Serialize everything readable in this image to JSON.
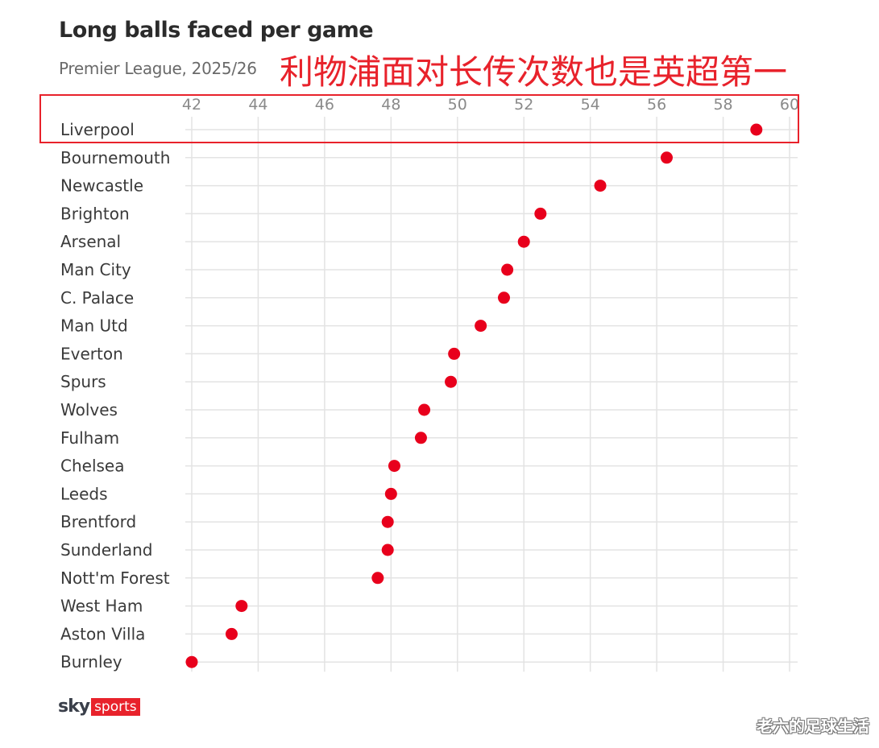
{
  "chart_data": {
    "type": "scatter",
    "title": "Long balls faced per game",
    "subtitle": "Premier League, 2025/26",
    "xlabel": "",
    "ylabel": "",
    "xlim": [
      42,
      60
    ],
    "x_ticks": [
      42,
      44,
      46,
      48,
      50,
      52,
      54,
      56,
      58,
      60
    ],
    "grid": true,
    "dot_color": "#e8001c",
    "categories": [
      "Liverpool",
      "Bournemouth",
      "Newcastle",
      "Brighton",
      "Arsenal",
      "Man City",
      "C. Palace",
      "Man Utd",
      "Everton",
      "Spurs",
      "Wolves",
      "Fulham",
      "Chelsea",
      "Leeds",
      "Brentford",
      "Sunderland",
      "Nott'm Forest",
      "West Ham",
      "Aston Villa",
      "Burnley"
    ],
    "values": [
      59.0,
      56.3,
      54.3,
      52.5,
      52.0,
      51.5,
      51.4,
      50.7,
      49.9,
      49.8,
      49.0,
      48.9,
      48.1,
      48.0,
      47.9,
      47.9,
      47.6,
      43.5,
      43.2,
      42.0
    ]
  },
  "annotation": {
    "text": "利物浦面对长传次数也是英超第一",
    "color": "#e8222b",
    "highlighted_category": "Liverpool"
  },
  "logo": {
    "sky": "sky",
    "sports": "sports",
    "accent": "#e8222b"
  },
  "watermark": "老六的足球生活"
}
